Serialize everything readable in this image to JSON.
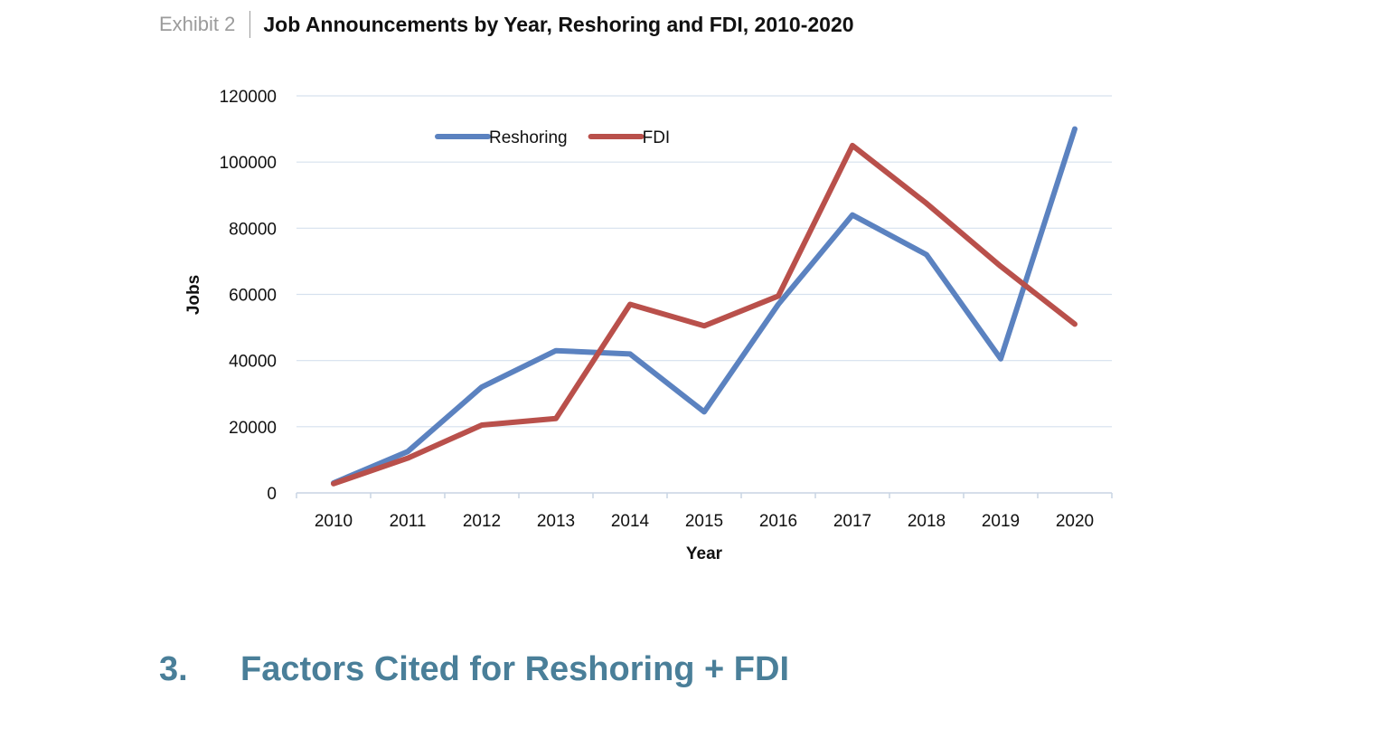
{
  "exhibit": {
    "label": "Exhibit 2",
    "title": "Job Announcements by Year, Reshoring and FDI, 2010-2020"
  },
  "chart_data": {
    "type": "line",
    "categories": [
      "2010",
      "2011",
      "2012",
      "2013",
      "2014",
      "2015",
      "2016",
      "2017",
      "2018",
      "2019",
      "2020"
    ],
    "series": [
      {
        "name": "Reshoring",
        "color": "#5b82c0",
        "values": [
          3000,
          12500,
          32000,
          43000,
          42000,
          24500,
          57000,
          84000,
          72000,
          40500,
          110000
        ]
      },
      {
        "name": "FDI",
        "color": "#b9504b",
        "values": [
          2800,
          10500,
          20500,
          22500,
          57000,
          50500,
          59500,
          105000,
          87500,
          68500,
          51000
        ]
      }
    ],
    "xlabel": "Year",
    "ylabel": "Jobs",
    "ylim": [
      0,
      120000
    ],
    "yticks": [
      "0",
      "20000",
      "40000",
      "60000",
      "80000",
      "100000",
      "120000"
    ],
    "legend_position": "top-center",
    "grid": true
  },
  "section": {
    "number": "3.",
    "title": "Factors Cited for Reshoring + FDI"
  }
}
